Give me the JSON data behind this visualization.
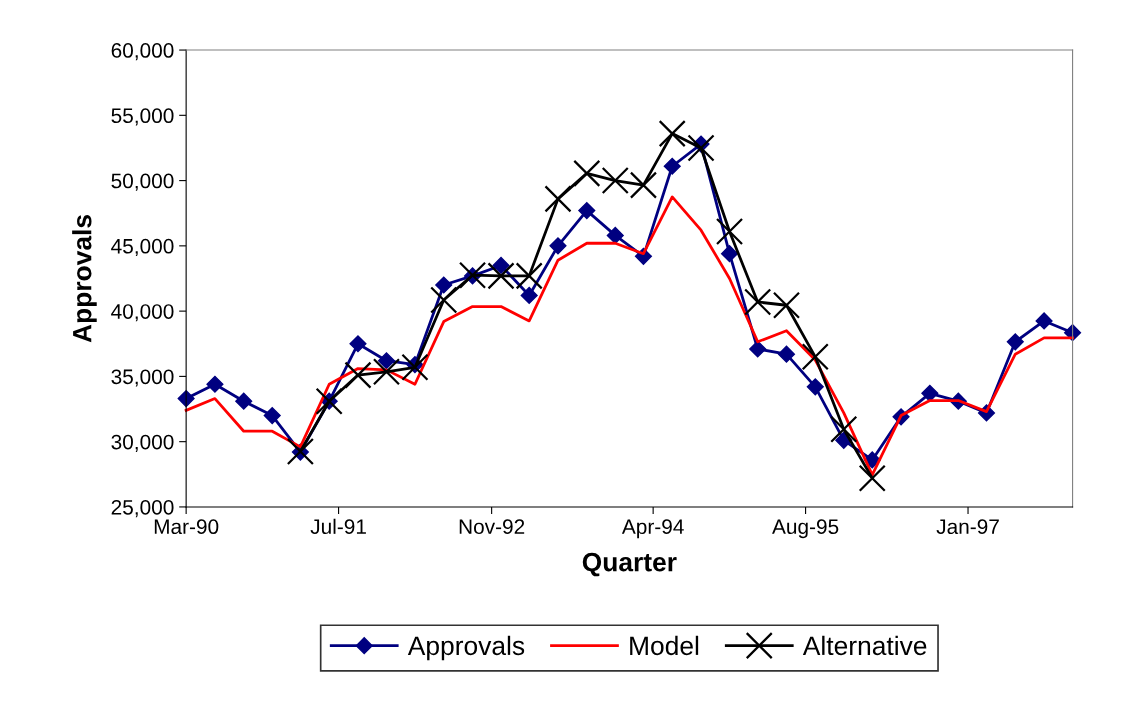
{
  "chart_data": {
    "type": "line",
    "xlabel": "Quarter",
    "ylabel": "Approvals",
    "x": [
      "1990-03",
      "1990-06",
      "1990-09",
      "1990-12",
      "1991-03",
      "1991-06",
      "1991-09",
      "1991-12",
      "1992-03",
      "1992-06",
      "1992-09",
      "1992-12",
      "1993-03",
      "1993-06",
      "1993-09",
      "1993-12",
      "1994-03",
      "1994-06",
      "1994-09",
      "1994-12",
      "1995-03",
      "1995-06",
      "1995-09",
      "1995-12",
      "1996-03",
      "1996-06",
      "1996-09",
      "1996-12",
      "1997-03",
      "1997-06",
      "1997-09",
      "1997-12"
    ],
    "series": [
      {
        "name": "Approvals",
        "color": "#000080",
        "marker": "diamond",
        "values": [
          33300,
          34400,
          33100,
          32000,
          29200,
          33100,
          37500,
          36200,
          35900,
          42000,
          42700,
          43500,
          41200,
          45000,
          47700,
          45800,
          44200,
          51100,
          52800,
          44400,
          37100,
          36700,
          34200,
          30100,
          28600,
          31900,
          33700,
          33100,
          32200,
          37650,
          39250,
          38350
        ]
      },
      {
        "name": "Model",
        "color": "#ff0000",
        "marker": "none",
        "values": [
          32400,
          33300,
          30800,
          30800,
          29600,
          34400,
          35600,
          35500,
          34400,
          39200,
          40350,
          40350,
          39250,
          43900,
          45200,
          45200,
          44400,
          48750,
          46200,
          42500,
          37650,
          38500,
          36250,
          32200,
          27450,
          32000,
          33150,
          33150,
          32300,
          36700,
          37950,
          37950
        ]
      },
      {
        "name": "Alternative",
        "color": "#000000",
        "marker": "cross",
        "values": [
          null,
          null,
          null,
          null,
          29250,
          33100,
          35100,
          35350,
          35700,
          40850,
          42750,
          42700,
          42700,
          48600,
          50550,
          50000,
          49650,
          53600,
          52500,
          46100,
          40700,
          40450,
          36500,
          30950,
          27200,
          null,
          null,
          null,
          null,
          null,
          null,
          null
        ]
      }
    ],
    "xlim": [
      "1990-03",
      "1997-12"
    ],
    "xticks": [
      {
        "value": "1990-03",
        "label": "Mar-90"
      },
      {
        "value": "1991-07",
        "label": "Jul-91"
      },
      {
        "value": "1992-11",
        "label": "Nov-92"
      },
      {
        "value": "1994-04",
        "label": "Apr-94"
      },
      {
        "value": "1995-08",
        "label": "Aug-95"
      },
      {
        "value": "1997-01",
        "label": "Jan-97"
      }
    ],
    "ylim": [
      25000,
      60000
    ],
    "yticks": [
      {
        "value": 25000,
        "label": "25,000"
      },
      {
        "value": 30000,
        "label": "30,000"
      },
      {
        "value": 35000,
        "label": "35,000"
      },
      {
        "value": 40000,
        "label": "40,000"
      },
      {
        "value": 45000,
        "label": "45,000"
      },
      {
        "value": 50000,
        "label": "50,000"
      },
      {
        "value": 55000,
        "label": "55,000"
      },
      {
        "value": 60000,
        "label": "60,000"
      }
    ],
    "grid": false,
    "legend": "bottom",
    "line_style": "solid"
  }
}
